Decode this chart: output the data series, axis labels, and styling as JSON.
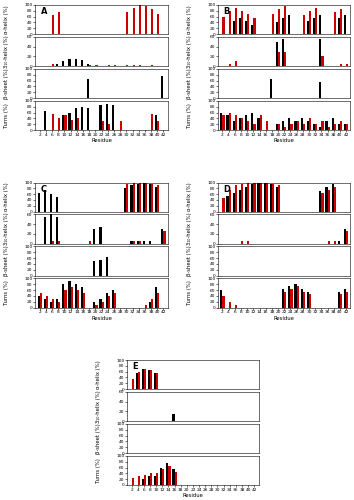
{
  "residues": [
    2,
    4,
    6,
    8,
    10,
    12,
    14,
    16,
    18,
    20,
    22,
    24,
    26,
    28,
    30,
    32,
    34,
    36,
    38,
    40,
    42
  ],
  "panels": {
    "A": {
      "label": "A",
      "alpha_helix_black": [
        0,
        0,
        0,
        0,
        0,
        0,
        0,
        0,
        0,
        0,
        0,
        0,
        0,
        0,
        0,
        0,
        0,
        0,
        0,
        0,
        0
      ],
      "alpha_helix_red": [
        0,
        0,
        65,
        75,
        0,
        0,
        0,
        0,
        0,
        0,
        0,
        0,
        0,
        0,
        75,
        90,
        100,
        95,
        85,
        70,
        0
      ],
      "310_helix_black": [
        0,
        0,
        0,
        5,
        10,
        15,
        15,
        12,
        5,
        0,
        0,
        0,
        0,
        0,
        0,
        0,
        0,
        0,
        0,
        0,
        0
      ],
      "310_helix_red": [
        0,
        0,
        5,
        0,
        0,
        0,
        0,
        0,
        3,
        2,
        0,
        2,
        2,
        0,
        2,
        2,
        2,
        0,
        2,
        0,
        0
      ],
      "beta_sheet_black": [
        0,
        0,
        0,
        0,
        0,
        0,
        0,
        0,
        65,
        0,
        0,
        0,
        0,
        0,
        0,
        0,
        0,
        0,
        0,
        0,
        75
      ],
      "beta_sheet_red": [
        0,
        0,
        0,
        0,
        0,
        0,
        0,
        0,
        0,
        0,
        0,
        0,
        0,
        0,
        0,
        0,
        0,
        0,
        0,
        0,
        0
      ],
      "turns_black": [
        0,
        65,
        0,
        0,
        50,
        60,
        75,
        80,
        75,
        0,
        85,
        90,
        85,
        0,
        0,
        0,
        0,
        0,
        0,
        50,
        0
      ],
      "turns_red": [
        0,
        0,
        55,
        40,
        50,
        35,
        40,
        0,
        0,
        0,
        30,
        20,
        0,
        30,
        0,
        0,
        0,
        0,
        55,
        30,
        0
      ]
    },
    "B": {
      "label": "B",
      "alpha_helix_black": [
        0,
        0,
        45,
        55,
        45,
        30,
        0,
        0,
        0,
        40,
        55,
        65,
        0,
        0,
        45,
        55,
        65,
        0,
        0,
        55,
        65
      ],
      "alpha_helix_red": [
        60,
        80,
        90,
        80,
        70,
        55,
        0,
        0,
        70,
        85,
        95,
        0,
        0,
        65,
        80,
        90,
        0,
        0,
        75,
        85,
        0
      ],
      "310_helix_black": [
        0,
        0,
        0,
        0,
        0,
        0,
        0,
        0,
        0,
        50,
        55,
        0,
        0,
        0,
        0,
        0,
        55,
        0,
        0,
        0,
        0
      ],
      "310_helix_red": [
        0,
        5,
        10,
        0,
        0,
        0,
        0,
        0,
        0,
        30,
        30,
        0,
        0,
        0,
        0,
        0,
        20,
        0,
        0,
        5,
        5
      ],
      "beta_sheet_black": [
        0,
        0,
        0,
        0,
        0,
        0,
        0,
        0,
        65,
        0,
        0,
        0,
        0,
        0,
        0,
        0,
        55,
        0,
        0,
        0,
        0
      ],
      "beta_sheet_red": [
        0,
        0,
        0,
        0,
        0,
        0,
        0,
        0,
        0,
        0,
        0,
        0,
        0,
        0,
        0,
        0,
        0,
        0,
        0,
        0,
        0
      ],
      "turns_black": [
        60,
        50,
        30,
        40,
        50,
        60,
        40,
        0,
        0,
        20,
        30,
        40,
        30,
        40,
        30,
        20,
        10,
        30,
        40,
        20,
        20
      ],
      "turns_red": [
        50,
        60,
        50,
        40,
        30,
        20,
        50,
        30,
        0,
        20,
        10,
        20,
        30,
        20,
        40,
        20,
        30,
        10,
        20,
        30,
        20
      ]
    },
    "C": {
      "label": "C",
      "alpha_helix_black": [
        65,
        75,
        60,
        50,
        0,
        0,
        0,
        0,
        0,
        0,
        0,
        0,
        0,
        0,
        80,
        90,
        95,
        100,
        95,
        85,
        0
      ],
      "alpha_helix_red": [
        0,
        0,
        0,
        0,
        0,
        0,
        0,
        0,
        0,
        0,
        0,
        0,
        0,
        0,
        95,
        100,
        100,
        100,
        95,
        90,
        0
      ],
      "310_helix_black": [
        0,
        55,
        60,
        55,
        0,
        0,
        0,
        0,
        0,
        30,
        35,
        0,
        0,
        0,
        0,
        5,
        5,
        5,
        5,
        0,
        30
      ],
      "310_helix_red": [
        0,
        0,
        5,
        5,
        0,
        0,
        0,
        0,
        5,
        0,
        0,
        0,
        0,
        0,
        0,
        5,
        5,
        0,
        0,
        0,
        25
      ],
      "beta_sheet_black": [
        0,
        0,
        0,
        0,
        0,
        0,
        0,
        0,
        0,
        50,
        55,
        65,
        0,
        0,
        0,
        0,
        0,
        0,
        0,
        0,
        0
      ],
      "beta_sheet_red": [
        0,
        0,
        0,
        0,
        0,
        0,
        0,
        0,
        0,
        0,
        0,
        0,
        0,
        0,
        0,
        0,
        0,
        0,
        0,
        0,
        0
      ],
      "turns_black": [
        40,
        30,
        20,
        30,
        80,
        90,
        80,
        70,
        0,
        20,
        30,
        50,
        60,
        0,
        0,
        0,
        0,
        0,
        20,
        70,
        0
      ],
      "turns_red": [
        50,
        40,
        30,
        20,
        60,
        70,
        60,
        50,
        0,
        10,
        20,
        40,
        50,
        0,
        0,
        0,
        0,
        10,
        30,
        50,
        0
      ]
    },
    "D": {
      "label": "D",
      "alpha_helix_black": [
        0,
        55,
        65,
        75,
        85,
        95,
        100,
        100,
        95,
        85,
        0,
        0,
        0,
        0,
        0,
        0,
        70,
        85,
        95,
        0,
        0
      ],
      "alpha_helix_red": [
        45,
        75,
        90,
        95,
        100,
        100,
        100,
        100,
        95,
        90,
        0,
        0,
        0,
        0,
        0,
        0,
        65,
        75,
        85,
        0,
        0
      ],
      "310_helix_black": [
        0,
        0,
        0,
        0,
        0,
        0,
        0,
        0,
        0,
        0,
        0,
        0,
        0,
        0,
        0,
        0,
        0,
        0,
        0,
        5,
        30
      ],
      "310_helix_red": [
        0,
        0,
        0,
        5,
        5,
        0,
        0,
        0,
        0,
        0,
        0,
        0,
        0,
        0,
        0,
        0,
        0,
        5,
        5,
        0,
        25
      ],
      "beta_sheet_black": [
        0,
        0,
        0,
        0,
        0,
        0,
        0,
        0,
        0,
        0,
        0,
        0,
        0,
        0,
        0,
        0,
        0,
        0,
        0,
        0,
        0
      ],
      "beta_sheet_red": [
        0,
        0,
        0,
        0,
        0,
        0,
        0,
        0,
        0,
        0,
        0,
        0,
        0,
        0,
        0,
        0,
        0,
        0,
        0,
        0,
        0
      ],
      "turns_black": [
        60,
        0,
        0,
        0,
        0,
        0,
        0,
        0,
        0,
        0,
        65,
        75,
        80,
        65,
        55,
        0,
        0,
        0,
        0,
        55,
        65
      ],
      "turns_red": [
        40,
        20,
        10,
        0,
        0,
        0,
        0,
        0,
        0,
        0,
        55,
        65,
        75,
        55,
        45,
        0,
        0,
        0,
        0,
        45,
        55
      ]
    },
    "E": {
      "label": "E",
      "residues_e": [
        2,
        4,
        6,
        8,
        10,
        12,
        14,
        16,
        18,
        20,
        22,
        24,
        26,
        28,
        30,
        32,
        34,
        36,
        38,
        40,
        42
      ],
      "alpha_helix_black": [
        0,
        55,
        70,
        65,
        55,
        0,
        0,
        0,
        0,
        0,
        0,
        0,
        0,
        0,
        0,
        0,
        0,
        0,
        0,
        0,
        0
      ],
      "alpha_helix_red": [
        35,
        60,
        70,
        65,
        55,
        0,
        0,
        0,
        0,
        0,
        0,
        0,
        0,
        0,
        0,
        0,
        0,
        0,
        0,
        0,
        0
      ],
      "310_helix_black": [
        0,
        0,
        0,
        0,
        0,
        0,
        0,
        15,
        0,
        0,
        0,
        0,
        0,
        0,
        0,
        0,
        0,
        0,
        0,
        0,
        0
      ],
      "310_helix_red": [
        0,
        0,
        0,
        0,
        0,
        0,
        0,
        0,
        0,
        0,
        0,
        0,
        0,
        0,
        0,
        0,
        0,
        0,
        0,
        0,
        0
      ],
      "beta_sheet_black": [
        0,
        0,
        0,
        0,
        0,
        0,
        0,
        0,
        0,
        0,
        0,
        0,
        0,
        0,
        0,
        0,
        0,
        0,
        0,
        0,
        0
      ],
      "beta_sheet_red": [
        0,
        0,
        0,
        0,
        0,
        0,
        0,
        0,
        0,
        0,
        0,
        0,
        0,
        0,
        0,
        0,
        0,
        0,
        0,
        0,
        0
      ],
      "turns_black": [
        0,
        0,
        20,
        30,
        30,
        60,
        75,
        55,
        0,
        0,
        0,
        0,
        0,
        0,
        0,
        0,
        0,
        0,
        0,
        0,
        0
      ],
      "turns_red": [
        25,
        30,
        35,
        40,
        40,
        55,
        65,
        45,
        0,
        0,
        0,
        0,
        0,
        0,
        0,
        0,
        0,
        0,
        0,
        0,
        0
      ]
    }
  },
  "bar_width": 0.35,
  "black_color": "#000000",
  "red_color": "#cc0000",
  "ylims": {
    "alpha": [
      0,
      100
    ],
    "310": [
      0,
      60
    ],
    "beta": [
      0,
      100
    ],
    "turns": [
      0,
      100
    ]
  },
  "yticks": {
    "alpha": [
      0,
      20,
      40,
      60,
      80,
      100
    ],
    "310": [
      0,
      20,
      40,
      60
    ],
    "beta": [
      0,
      20,
      40,
      60,
      80,
      100
    ],
    "turns": [
      0,
      20,
      40,
      60,
      80,
      100
    ]
  },
  "ylabel_alpha": "α-helix (%)",
  "ylabel_310": "3₁₀-helix (%)",
  "ylabel_beta": "β-sheet (%)",
  "ylabel_turns": "Turns (%)",
  "xlabel": "Residue",
  "fontsize_label": 3.8,
  "fontsize_tick": 3.2,
  "fontsize_panel": 6
}
